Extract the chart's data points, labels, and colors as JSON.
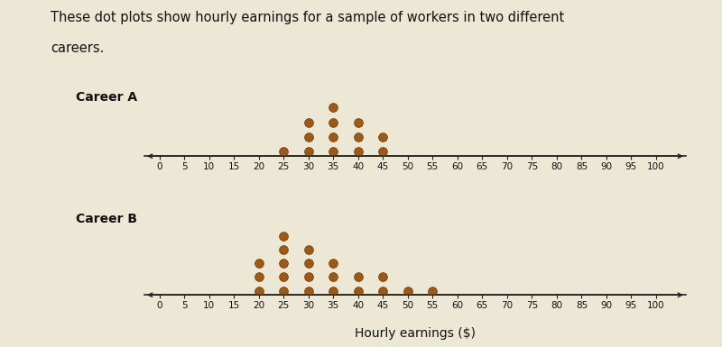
{
  "title_line1": "These dot plots show hourly earnings for a sample of workers in two different",
  "title_line2": "careers.",
  "xlabel": "Hourly earnings ($)",
  "career_a_label": "Career A",
  "career_b_label": "Career B",
  "career_a_dots": [
    30,
    35,
    40,
    45,
    25,
    30,
    35,
    40,
    45,
    30,
    35,
    40,
    35
  ],
  "career_b_dots": [
    20,
    25,
    30,
    35,
    40,
    45,
    50,
    55,
    20,
    25,
    30,
    35,
    40,
    45,
    20,
    25,
    30,
    35,
    25,
    30,
    25
  ],
  "dot_color": "#9B5A1A",
  "dot_edgecolor": "#7A3F0A",
  "background_color": "#EDE8D5",
  "axis_color": "#222222",
  "tick_values": [
    0,
    5,
    10,
    15,
    20,
    25,
    30,
    35,
    40,
    45,
    50,
    55,
    60,
    65,
    70,
    75,
    80,
    85,
    90,
    95,
    100
  ],
  "xlim": [
    -3,
    106
  ],
  "ylim_a": [
    0,
    5.5
  ],
  "ylim_b": [
    0,
    6.5
  ],
  "dot_size": 7,
  "title_fontsize": 10.5,
  "label_fontsize": 10,
  "tick_fontsize": 7.5,
  "xlabel_fontsize": 10
}
